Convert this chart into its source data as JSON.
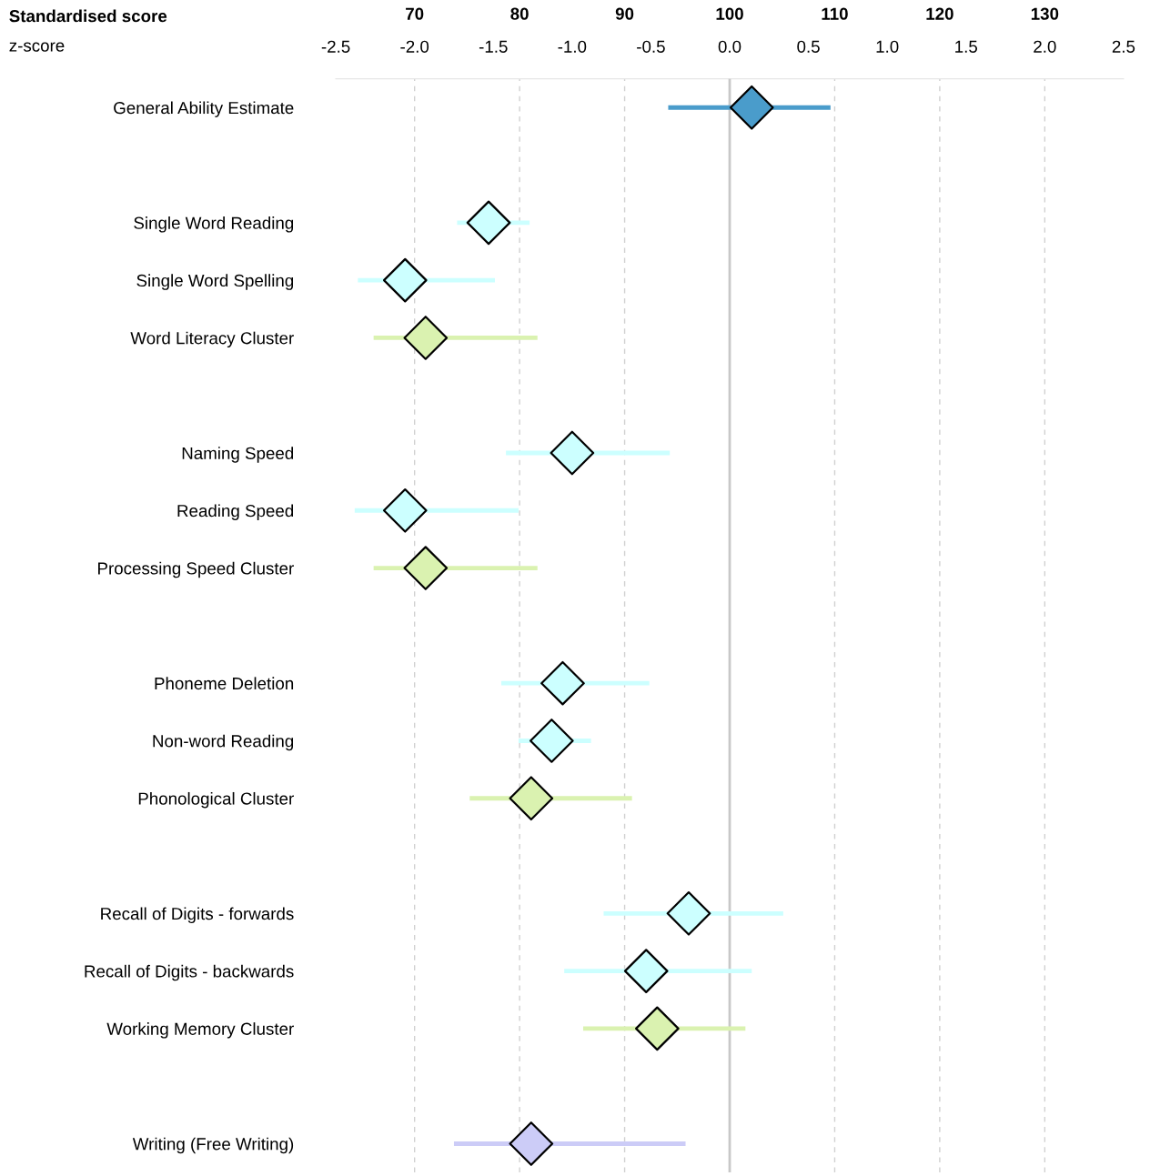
{
  "chart_data": {
    "type": "scatter",
    "orientation": "horizontal",
    "categories": [
      "General Ability Estimate",
      null,
      "Single Word Reading",
      "Single Word Spelling",
      "Word Literacy Cluster",
      null,
      "Naming Speed",
      "Reading Speed",
      "Processing Speed Cluster",
      null,
      "Phoneme Deletion",
      "Non-word Reading",
      "Phonological Cluster",
      null,
      "Recall of Digits - forwards",
      "Recall of Digits - backwards",
      "Working Memory Cluster",
      null,
      "Writing (Free Writing)"
    ],
    "values": [
      0.14,
      null,
      -1.53,
      -2.06,
      -1.93,
      null,
      -1.0,
      -2.06,
      -1.93,
      null,
      -1.06,
      -1.13,
      -1.26,
      null,
      -0.26,
      -0.53,
      -0.46,
      null,
      -1.26
    ],
    "errors": [
      [
        -0.39,
        0.64
      ],
      null,
      [
        -1.73,
        -1.27
      ],
      [
        -2.36,
        -1.49
      ],
      [
        -2.26,
        -1.22
      ],
      null,
      [
        -1.42,
        -0.38
      ],
      [
        -2.38,
        -1.34
      ],
      [
        -2.26,
        -1.22
      ],
      null,
      [
        -1.45,
        -0.51
      ],
      [
        -1.34,
        -0.88
      ],
      [
        -1.65,
        -0.62
      ],
      null,
      [
        -0.8,
        0.34
      ],
      [
        -1.05,
        0.14
      ],
      [
        -0.93,
        0.1
      ],
      null,
      [
        -1.75,
        -0.28
      ]
    ],
    "colors": [
      "#4a9ccb",
      null,
      "#ccffff",
      "#ccffff",
      "#daf2b0",
      null,
      "#ccffff",
      "#ccffff",
      "#daf2b0",
      null,
      "#ccffff",
      "#ccffff",
      "#daf2b0",
      null,
      "#ccffff",
      "#ccffff",
      "#daf2b0",
      null,
      "#ccccf7"
    ],
    "xlabel": "z-score",
    "x2label": "Standardised score",
    "xlim": [
      -2.5,
      2.5
    ],
    "xticks": [
      {
        "value": -2.5,
        "label": "-2.5"
      },
      {
        "value": -2.0,
        "label": "-2.0"
      },
      {
        "value": -1.5,
        "label": "-1.5"
      },
      {
        "value": -1.0,
        "label": "-1.0"
      },
      {
        "value": -0.5,
        "label": "-0.5"
      },
      {
        "value": 0.0,
        "label": "0.0"
      },
      {
        "value": 0.5,
        "label": "0.5"
      },
      {
        "value": 1.0,
        "label": "1.0"
      },
      {
        "value": 1.5,
        "label": "1.5"
      },
      {
        "value": 2.0,
        "label": "2.0"
      },
      {
        "value": 2.5,
        "label": "2.5"
      }
    ],
    "x2lim": [
      62.5,
      137.5
    ],
    "x2ticks": [
      70,
      80,
      90,
      100,
      110,
      120,
      130
    ],
    "ref_lines": [
      {
        "axis": "x",
        "value": 0,
        "color": "#c8c8c8"
      }
    ],
    "grid": true,
    "marker": "diamond",
    "legend": false
  }
}
